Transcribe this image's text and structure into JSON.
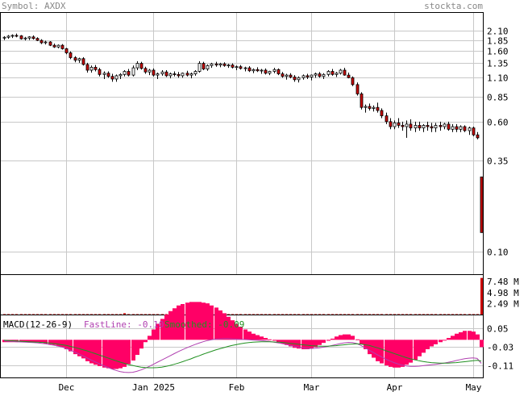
{
  "header": {
    "symbol_text": "Symbol: AXDX",
    "site": "stockta.com"
  },
  "chart_data": [
    {
      "type": "candlestick",
      "panel": "price",
      "y_scale": "log",
      "ylim": [
        0.08,
        2.3
      ],
      "y_ticks": [
        {
          "value": 2.1,
          "label": "2.10"
        },
        {
          "value": 1.85,
          "label": "1.85"
        },
        {
          "value": 1.6,
          "label": "1.60"
        },
        {
          "value": 1.35,
          "label": "1.35"
        },
        {
          "value": 1.1,
          "label": "1.10"
        },
        {
          "value": 0.85,
          "label": "0.85"
        },
        {
          "value": 0.6,
          "label": "0.60"
        },
        {
          "value": 0.35,
          "label": "0.35"
        },
        {
          "value": 0.1,
          "label": "0.10"
        }
      ],
      "x_labels": [
        "Dec",
        "Jan 2025",
        "Feb",
        "Mar",
        "Apr",
        "May"
      ],
      "label_sessions": [
        15,
        36,
        56,
        74,
        94,
        113
      ],
      "grid": true,
      "colors": {
        "up": "#ffffff",
        "down": "#cc0000",
        "outline": "#000000",
        "grid": "#c8c8c8"
      },
      "candles": [
        [
          1.9,
          1.95,
          1.85,
          1.92
        ],
        [
          1.92,
          1.98,
          1.88,
          1.95
        ],
        [
          1.95,
          2.0,
          1.9,
          1.97
        ],
        [
          1.97,
          2.02,
          1.92,
          1.96
        ],
        [
          1.96,
          1.98,
          1.86,
          1.88
        ],
        [
          1.88,
          1.93,
          1.84,
          1.9
        ],
        [
          1.9,
          1.95,
          1.85,
          1.93
        ],
        [
          1.93,
          1.97,
          1.86,
          1.89
        ],
        [
          1.89,
          1.92,
          1.82,
          1.84
        ],
        [
          1.84,
          1.87,
          1.75,
          1.78
        ],
        [
          1.78,
          1.83,
          1.74,
          1.8
        ],
        [
          1.8,
          1.82,
          1.7,
          1.72
        ],
        [
          1.72,
          1.76,
          1.66,
          1.68
        ],
        [
          1.68,
          1.74,
          1.65,
          1.72
        ],
        [
          1.72,
          1.75,
          1.62,
          1.64
        ],
        [
          1.64,
          1.66,
          1.52,
          1.55
        ],
        [
          1.55,
          1.58,
          1.42,
          1.45
        ],
        [
          1.45,
          1.48,
          1.36,
          1.4
        ],
        [
          1.4,
          1.45,
          1.35,
          1.43
        ],
        [
          1.43,
          1.46,
          1.3,
          1.32
        ],
        [
          1.32,
          1.35,
          1.18,
          1.22
        ],
        [
          1.22,
          1.3,
          1.18,
          1.27
        ],
        [
          1.27,
          1.31,
          1.2,
          1.23
        ],
        [
          1.23,
          1.26,
          1.12,
          1.15
        ],
        [
          1.15,
          1.2,
          1.08,
          1.17
        ],
        [
          1.17,
          1.2,
          1.1,
          1.12
        ],
        [
          1.12,
          1.16,
          1.04,
          1.08
        ],
        [
          1.08,
          1.15,
          1.04,
          1.13
        ],
        [
          1.13,
          1.17,
          1.08,
          1.15
        ],
        [
          1.15,
          1.22,
          1.12,
          1.2
        ],
        [
          1.2,
          1.24,
          1.12,
          1.14
        ],
        [
          1.14,
          1.3,
          1.12,
          1.26
        ],
        [
          1.26,
          1.38,
          1.22,
          1.34
        ],
        [
          1.34,
          1.37,
          1.23,
          1.25
        ],
        [
          1.25,
          1.28,
          1.16,
          1.19
        ],
        [
          1.19,
          1.24,
          1.14,
          1.22
        ],
        [
          1.22,
          1.25,
          1.12,
          1.14
        ],
        [
          1.14,
          1.18,
          1.08,
          1.16
        ],
        [
          1.16,
          1.22,
          1.13,
          1.19
        ],
        [
          1.19,
          1.22,
          1.11,
          1.13
        ],
        [
          1.13,
          1.18,
          1.09,
          1.16
        ],
        [
          1.16,
          1.2,
          1.12,
          1.15
        ],
        [
          1.15,
          1.19,
          1.1,
          1.13
        ],
        [
          1.13,
          1.18,
          1.1,
          1.17
        ],
        [
          1.17,
          1.21,
          1.12,
          1.14
        ],
        [
          1.14,
          1.18,
          1.09,
          1.16
        ],
        [
          1.16,
          1.22,
          1.13,
          1.2
        ],
        [
          1.2,
          1.38,
          1.18,
          1.34
        ],
        [
          1.34,
          1.37,
          1.22,
          1.24
        ],
        [
          1.24,
          1.32,
          1.21,
          1.3
        ],
        [
          1.3,
          1.35,
          1.26,
          1.33
        ],
        [
          1.33,
          1.37,
          1.28,
          1.31
        ],
        [
          1.31,
          1.35,
          1.27,
          1.33
        ],
        [
          1.33,
          1.36,
          1.28,
          1.3
        ],
        [
          1.3,
          1.33,
          1.26,
          1.31
        ],
        [
          1.31,
          1.34,
          1.25,
          1.27
        ],
        [
          1.27,
          1.3,
          1.22,
          1.28
        ],
        [
          1.28,
          1.31,
          1.23,
          1.25
        ],
        [
          1.25,
          1.28,
          1.2,
          1.26
        ],
        [
          1.26,
          1.29,
          1.19,
          1.21
        ],
        [
          1.21,
          1.25,
          1.17,
          1.23
        ],
        [
          1.23,
          1.27,
          1.19,
          1.21
        ],
        [
          1.21,
          1.24,
          1.16,
          1.22
        ],
        [
          1.22,
          1.25,
          1.15,
          1.17
        ],
        [
          1.17,
          1.21,
          1.14,
          1.2
        ],
        [
          1.2,
          1.26,
          1.17,
          1.23
        ],
        [
          1.23,
          1.25,
          1.14,
          1.16
        ],
        [
          1.16,
          1.19,
          1.1,
          1.12
        ],
        [
          1.12,
          1.16,
          1.07,
          1.14
        ],
        [
          1.14,
          1.17,
          1.09,
          1.11
        ],
        [
          1.11,
          1.14,
          1.04,
          1.07
        ],
        [
          1.07,
          1.12,
          1.03,
          1.1
        ],
        [
          1.1,
          1.15,
          1.07,
          1.13
        ],
        [
          1.13,
          1.16,
          1.08,
          1.11
        ],
        [
          1.11,
          1.15,
          1.06,
          1.14
        ],
        [
          1.14,
          1.18,
          1.1,
          1.16
        ],
        [
          1.16,
          1.19,
          1.1,
          1.12
        ],
        [
          1.12,
          1.17,
          1.08,
          1.15
        ],
        [
          1.15,
          1.22,
          1.12,
          1.2
        ],
        [
          1.2,
          1.24,
          1.13,
          1.15
        ],
        [
          1.15,
          1.19,
          1.11,
          1.17
        ],
        [
          1.17,
          1.24,
          1.15,
          1.22
        ],
        [
          1.22,
          1.26,
          1.13,
          1.14
        ],
        [
          1.14,
          1.18,
          1.09,
          1.1
        ],
        [
          1.1,
          1.12,
          0.98,
          1.0
        ],
        [
          1.0,
          1.03,
          0.86,
          0.88
        ],
        [
          0.88,
          0.9,
          0.71,
          0.73
        ],
        [
          0.73,
          0.76,
          0.68,
          0.74
        ],
        [
          0.74,
          0.77,
          0.7,
          0.72
        ],
        [
          0.72,
          0.75,
          0.69,
          0.73
        ],
        [
          0.73,
          0.78,
          0.68,
          0.7
        ],
        [
          0.7,
          0.72,
          0.63,
          0.65
        ],
        [
          0.65,
          0.68,
          0.58,
          0.6
        ],
        [
          0.6,
          0.63,
          0.54,
          0.56
        ],
        [
          0.56,
          0.61,
          0.54,
          0.59
        ],
        [
          0.59,
          0.63,
          0.55,
          0.57
        ],
        [
          0.57,
          0.6,
          0.53,
          0.56
        ],
        [
          0.56,
          0.61,
          0.48,
          0.58
        ],
        [
          0.58,
          0.62,
          0.53,
          0.55
        ],
        [
          0.55,
          0.6,
          0.52,
          0.57
        ],
        [
          0.57,
          0.6,
          0.53,
          0.55
        ],
        [
          0.55,
          0.58,
          0.52,
          0.57
        ],
        [
          0.57,
          0.6,
          0.53,
          0.56
        ],
        [
          0.56,
          0.59,
          0.52,
          0.55
        ],
        [
          0.55,
          0.59,
          0.52,
          0.57
        ],
        [
          0.57,
          0.6,
          0.53,
          0.56
        ],
        [
          0.56,
          0.59,
          0.54,
          0.58
        ],
        [
          0.58,
          0.6,
          0.53,
          0.54
        ],
        [
          0.54,
          0.58,
          0.52,
          0.56
        ],
        [
          0.56,
          0.58,
          0.52,
          0.54
        ],
        [
          0.54,
          0.57,
          0.52,
          0.56
        ],
        [
          0.56,
          0.57,
          0.52,
          0.53
        ],
        [
          0.53,
          0.56,
          0.5,
          0.55
        ],
        [
          0.55,
          0.56,
          0.49,
          0.5
        ],
        [
          0.5,
          0.52,
          0.47,
          0.48
        ],
        [
          0.28,
          0.28,
          0.13,
          0.13
        ]
      ]
    },
    {
      "type": "bar",
      "panel": "volume",
      "y_ticks": [
        {
          "value": 7.48,
          "label": "7.48 M"
        },
        {
          "value": 4.98,
          "label": "4.98 M"
        },
        {
          "value": 2.49,
          "label": "2.49 M"
        }
      ],
      "ylim": [
        0,
        8.6
      ],
      "unit": "M",
      "color": "#cc0000",
      "values": [
        0.1,
        0.1,
        0.1,
        0.1,
        0.1,
        0.1,
        0.1,
        0.1,
        0.1,
        0.1,
        0.1,
        0.1,
        0.1,
        0.1,
        0.1,
        0.1,
        0.1,
        0.1,
        0.1,
        0.1,
        0.1,
        0.1,
        0.1,
        0.1,
        0.1,
        0.1,
        0.1,
        0.1,
        0.1,
        0.3,
        0.1,
        0.1,
        0.1,
        0.1,
        0.1,
        0.1,
        0.1,
        0.1,
        0.1,
        0.1,
        0.1,
        0.1,
        0.1,
        0.1,
        0.1,
        0.1,
        0.1,
        0.1,
        0.1,
        0.1,
        0.1,
        0.1,
        0.1,
        0.1,
        0.1,
        0.1,
        0.1,
        0.1,
        0.1,
        0.1,
        0.1,
        0.1,
        0.1,
        0.1,
        0.1,
        0.1,
        0.1,
        0.1,
        0.1,
        0.1,
        0.1,
        0.1,
        0.1,
        0.1,
        0.1,
        0.1,
        0.1,
        0.1,
        0.1,
        0.1,
        0.1,
        0.1,
        0.1,
        0.1,
        0.1,
        0.1,
        0.1,
        0.1,
        0.1,
        0.1,
        0.1,
        0.1,
        0.1,
        0.1,
        0.1,
        0.1,
        0.1,
        0.1,
        0.1,
        0.1,
        0.1,
        0.1,
        0.1,
        0.1,
        0.1,
        0.1,
        0.1,
        0.1,
        0.1,
        0.1,
        0.1,
        0.1,
        0.1,
        0.1,
        0.1,
        8.3
      ]
    },
    {
      "type": "line",
      "panel": "macd",
      "label": "MACD(12-26-9)",
      "fast_label": "FastLine: -0.10",
      "smoothed_label": "Smoothed: -0.09",
      "ylim": [
        -0.16,
        0.08
      ],
      "y_ticks": [
        {
          "value": 0.05,
          "label": "0.05"
        },
        {
          "value": -0.03,
          "label": "-0.03"
        },
        {
          "value": -0.11,
          "label": "-0.11"
        }
      ],
      "colors": {
        "fast": "#b040b0",
        "smoothed": "#209020",
        "histogram": "#ff0066"
      },
      "fast_line": [
        -0.005,
        -0.006,
        -0.007,
        -0.008,
        -0.009,
        -0.01,
        -0.011,
        -0.012,
        -0.013,
        -0.015,
        -0.017,
        -0.02,
        -0.023,
        -0.027,
        -0.031,
        -0.037,
        -0.044,
        -0.052,
        -0.06,
        -0.068,
        -0.077,
        -0.086,
        -0.094,
        -0.102,
        -0.11,
        -0.117,
        -0.124,
        -0.13,
        -0.135,
        -0.138,
        -0.139,
        -0.138,
        -0.134,
        -0.128,
        -0.121,
        -0.113,
        -0.104,
        -0.095,
        -0.086,
        -0.077,
        -0.068,
        -0.059,
        -0.05,
        -0.042,
        -0.034,
        -0.027,
        -0.02,
        -0.014,
        -0.008,
        -0.003,
        0.0,
        0.003,
        0.004,
        0.005,
        0.005,
        0.004,
        0.003,
        0.002,
        0.001,
        0.0,
        -0.001,
        -0.002,
        -0.003,
        -0.005,
        -0.007,
        -0.01,
        -0.013,
        -0.016,
        -0.02,
        -0.024,
        -0.028,
        -0.031,
        -0.034,
        -0.036,
        -0.037,
        -0.036,
        -0.034,
        -0.031,
        -0.028,
        -0.024,
        -0.02,
        -0.016,
        -0.013,
        -0.011,
        -0.012,
        -0.016,
        -0.024,
        -0.034,
        -0.044,
        -0.054,
        -0.064,
        -0.073,
        -0.082,
        -0.09,
        -0.097,
        -0.103,
        -0.108,
        -0.111,
        -0.113,
        -0.113,
        -0.112,
        -0.11,
        -0.108,
        -0.106,
        -0.104,
        -0.102,
        -0.099,
        -0.096,
        -0.092,
        -0.088,
        -0.084,
        -0.08,
        -0.078,
        -0.077,
        -0.079,
        -0.1
      ],
      "smoothed_line": [
        -0.002,
        -0.003,
        -0.004,
        -0.005,
        -0.006,
        -0.007,
        -0.008,
        -0.009,
        -0.01,
        -0.011,
        -0.012,
        -0.014,
        -0.016,
        -0.018,
        -0.021,
        -0.024,
        -0.028,
        -0.032,
        -0.037,
        -0.042,
        -0.047,
        -0.053,
        -0.059,
        -0.065,
        -0.071,
        -0.077,
        -0.083,
        -0.089,
        -0.095,
        -0.1,
        -0.105,
        -0.109,
        -0.113,
        -0.116,
        -0.118,
        -0.119,
        -0.119,
        -0.118,
        -0.116,
        -0.113,
        -0.109,
        -0.104,
        -0.099,
        -0.093,
        -0.087,
        -0.081,
        -0.074,
        -0.068,
        -0.061,
        -0.055,
        -0.049,
        -0.043,
        -0.038,
        -0.033,
        -0.028,
        -0.024,
        -0.02,
        -0.017,
        -0.014,
        -0.012,
        -0.01,
        -0.009,
        -0.008,
        -0.008,
        -0.008,
        -0.009,
        -0.01,
        -0.011,
        -0.013,
        -0.015,
        -0.017,
        -0.019,
        -0.021,
        -0.023,
        -0.025,
        -0.026,
        -0.027,
        -0.027,
        -0.027,
        -0.026,
        -0.025,
        -0.023,
        -0.021,
        -0.019,
        -0.018,
        -0.017,
        -0.018,
        -0.021,
        -0.024,
        -0.029,
        -0.034,
        -0.04,
        -0.046,
        -0.052,
        -0.058,
        -0.064,
        -0.07,
        -0.076,
        -0.081,
        -0.085,
        -0.089,
        -0.092,
        -0.095,
        -0.097,
        -0.098,
        -0.099,
        -0.099,
        -0.099,
        -0.098,
        -0.097,
        -0.095,
        -0.093,
        -0.091,
        -0.089,
        -0.087,
        -0.09
      ],
      "histogram_sign": "fast_minus_smoothed"
    }
  ]
}
